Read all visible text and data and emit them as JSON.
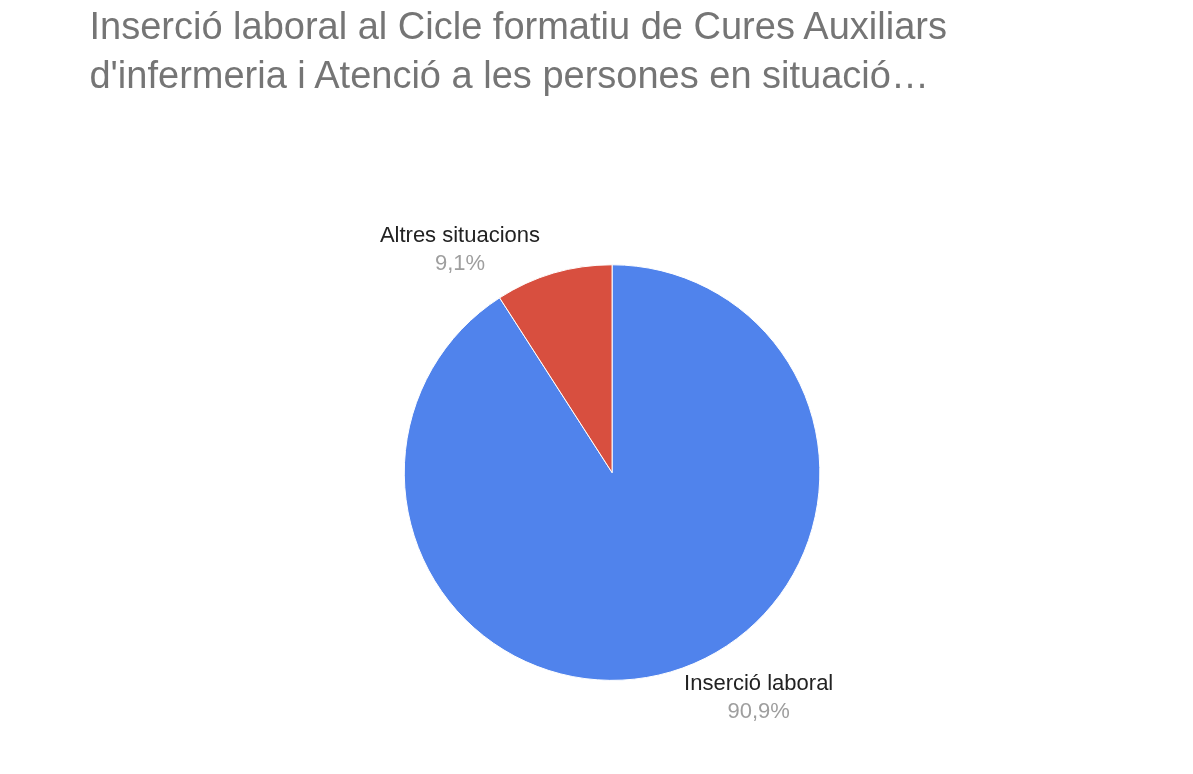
{
  "chart_data": {
    "type": "pie",
    "title": "Inserció laboral al Cicle formatiu de Cures Auxiliars\nd'infermeria i Atenció a les persones en situació…",
    "categories": [
      "Inserció laboral",
      "Altres situacions"
    ],
    "values": [
      90.9,
      9.1
    ],
    "colors": [
      "#5083ec",
      "#d84f3f"
    ],
    "value_labels": [
      "90,9%",
      "9,1%"
    ],
    "legend": false
  }
}
